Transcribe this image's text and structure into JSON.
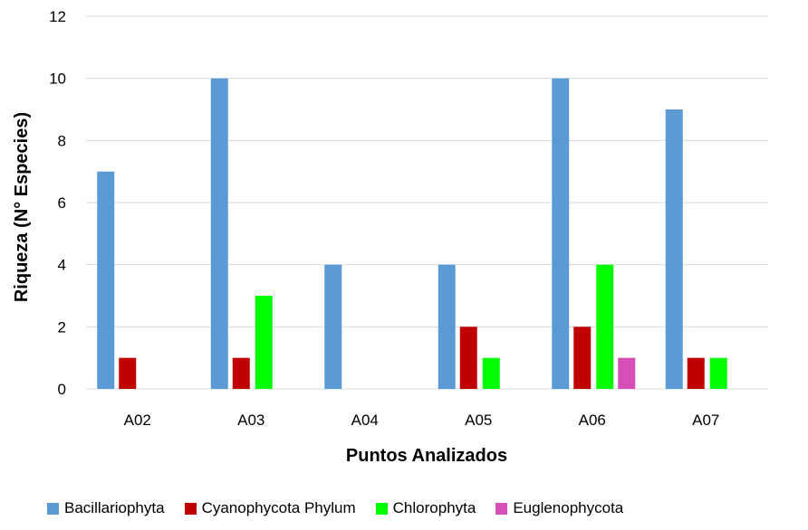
{
  "chart_data": {
    "type": "bar",
    "categories": [
      "A02",
      "A03",
      "A04",
      "A05",
      "A06",
      "A07"
    ],
    "series": [
      {
        "name": "Bacillariophyta",
        "color": "#5B9BD5",
        "values": [
          7,
          10,
          4,
          4,
          10,
          9
        ]
      },
      {
        "name": "Cyanophycota Phylum",
        "color": "#C00000",
        "values": [
          1,
          1,
          0,
          2,
          2,
          1
        ]
      },
      {
        "name": "Chlorophyta",
        "color": "#00FF00",
        "values": [
          0,
          3,
          0,
          1,
          4,
          1
        ]
      },
      {
        "name": "Euglenophycota",
        "color": "#D64FB6",
        "values": [
          0,
          0,
          0,
          0,
          1,
          0
        ]
      }
    ],
    "xlabel": "Puntos Analizados",
    "ylabel": "Riqueza (N° Especies)",
    "ylim": [
      0,
      12
    ],
    "yticks": [
      0,
      2,
      4,
      6,
      8,
      10,
      12
    ],
    "grid": true,
    "legend_position": "bottom"
  }
}
